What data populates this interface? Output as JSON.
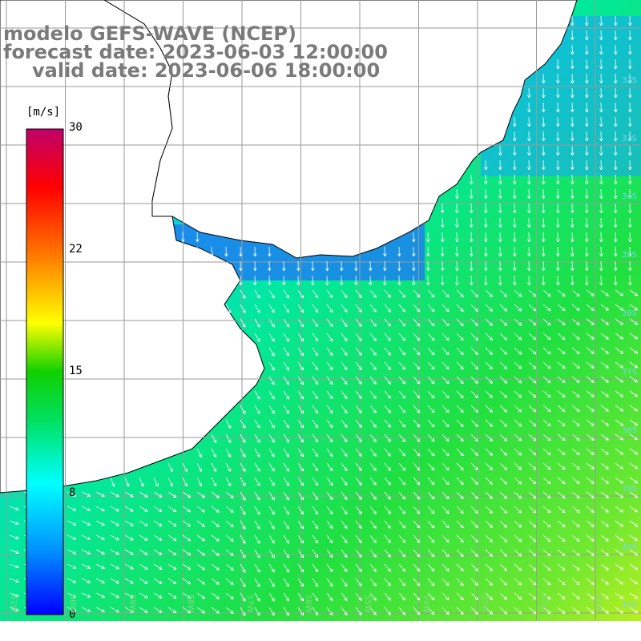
{
  "title": {
    "line1": "modelo GEFS-WAVE (NCEP)",
    "line2": "forecast date: 2023-06-03 12:00:00",
    "line3": "valid date: 2023-06-06 18:00:00"
  },
  "colorbar": {
    "unit": "[m/s]",
    "ticks": [
      "30",
      "22",
      "15",
      "8",
      "0"
    ],
    "colors": [
      "#0000ff",
      "#00a0ff",
      "#00ffff",
      "#00d000",
      "#30e000",
      "#ffff00",
      "#ff8000",
      "#ff0000",
      "#c0006a"
    ]
  },
  "lat_labels": [
    "32S",
    "33S",
    "34S",
    "35S",
    "36S",
    "37S",
    "38S",
    "39S",
    "40S",
    "41S"
  ],
  "lon_labels": [
    "61W",
    "60W",
    "59W",
    "58W",
    "57W",
    "56W",
    "55W",
    "54W",
    "53W",
    "52W",
    "51W"
  ],
  "colors": {
    "land": "#ffffff",
    "coast": "#000000",
    "grid": "#9a9a9a",
    "arrow": "#ffffff",
    "title": "#7a7a7a"
  }
}
